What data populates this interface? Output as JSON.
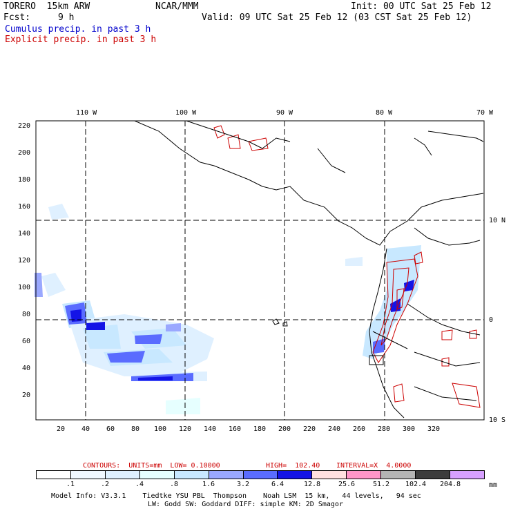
{
  "header": {
    "model_name": "TORERO  15km ARW",
    "org": "NCAR/MMM",
    "init": "Init: 00 UTC Sat 25 Feb 12",
    "fcst_label": "Fcst:",
    "fcst_value": "9 h",
    "valid": "Valid: 09 UTC Sat 25 Feb 12 (03 CST Sat 25 Feb 12)",
    "field1": "Cumulus precip. in past 3 h",
    "field2": "Explicit precip. in past 3 h"
  },
  "map": {
    "lon_labels": [
      "110 W",
      "100 W",
      "90 W",
      "80 W",
      "70 W"
    ],
    "lat_labels": [
      "10 N",
      "0",
      "10 S"
    ],
    "y_ticks": [
      "220",
      "200",
      "180",
      "160",
      "140",
      "120",
      "100",
      "80",
      "60",
      "40",
      "20"
    ],
    "x_ticks": [
      "20",
      "40",
      "60",
      "80",
      "100",
      "120",
      "140",
      "160",
      "180",
      "200",
      "220",
      "240",
      "260",
      "280",
      "300",
      "320"
    ]
  },
  "contours": {
    "label": "CONTOURS:  UNITS=mm  LOW= 0.10000",
    "high": "HIGH=  102.40",
    "interval": "INTERVAL=X  4.0000"
  },
  "colorbar": {
    "labels": [
      ".1",
      ".2",
      ".4",
      ".8",
      "1.6",
      "3.2",
      "6.4",
      "12.8",
      "25.6",
      "51.2",
      "102.4",
      "204.8"
    ],
    "unit": "mm",
    "colors": [
      "#ffffff",
      "#f0f8ff",
      "#dff0ff",
      "#e6ffff",
      "#c8e8ff",
      "#9aa8ff",
      "#5a6cff",
      "#1414e6",
      "#ffe0e0",
      "#ff96c8",
      "#b4b4b4",
      "#3c3c3c",
      "#d7a0ff"
    ]
  },
  "footer": {
    "line1": "Model Info: V3.3.1    Tiedtke YSU PBL  Thompson    Noah LSM  15 km,   44 levels,   94 sec",
    "line2": "LW: Godd SW: Goddard DIFF: simple KM: 2D Smagor"
  }
}
